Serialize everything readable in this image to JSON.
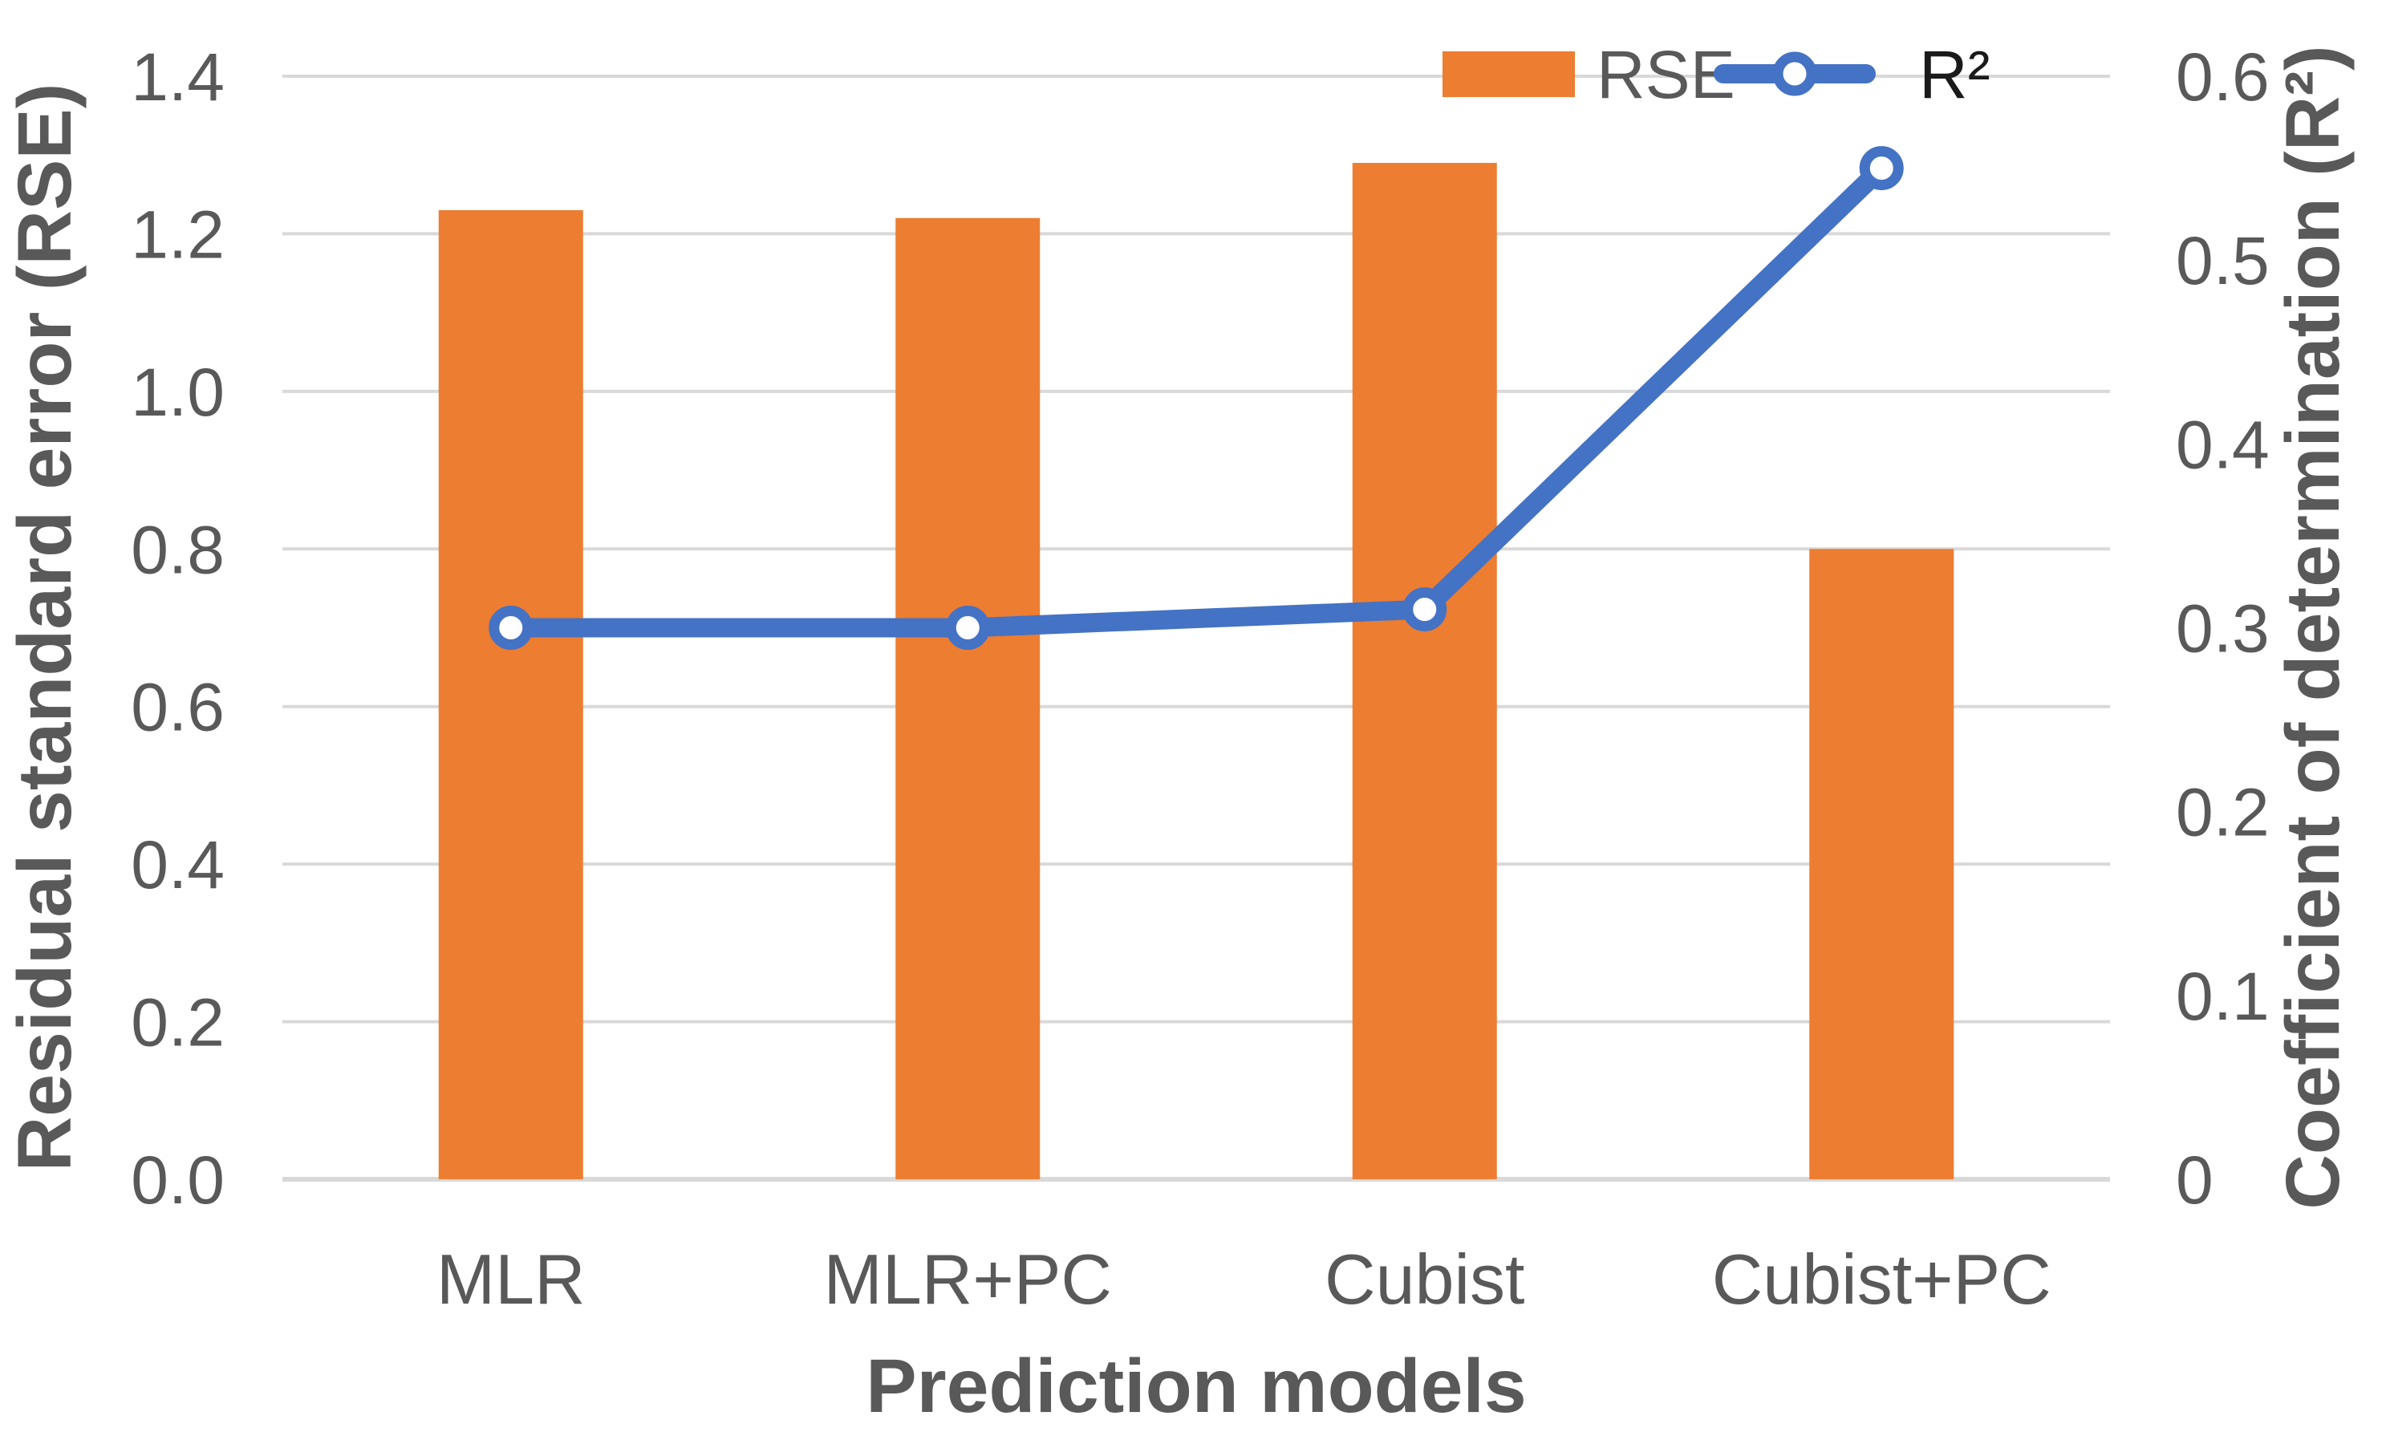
{
  "chart_data": {
    "type": "combo (bar + line, dual axis)",
    "categories": [
      "MLR",
      "MLR+PC",
      "Cubist",
      "Cubist+PC"
    ],
    "series": [
      {
        "name": "RSE",
        "type": "bar",
        "axis": "left",
        "color": "#ED7D31",
        "values": [
          1.23,
          1.22,
          1.29,
          0.8
        ]
      },
      {
        "name": "R²",
        "type": "line",
        "axis": "right",
        "color": "#4472C4",
        "marker": "open-circle",
        "values": [
          0.3,
          0.3,
          0.31,
          0.55
        ]
      }
    ],
    "x_axis": {
      "title": "Prediction models"
    },
    "left_axis": {
      "title": "Residual standard error (RSE)",
      "min": 0,
      "max": 1.4,
      "step": 0.2,
      "tick_labels": [
        "0.0",
        "0.2",
        "0.4",
        "0.6",
        "0.8",
        "1.0",
        "1.2",
        "1.4"
      ]
    },
    "right_axis": {
      "title": "Coefficient of determination (R²)",
      "min": 0,
      "max": 0.6,
      "step": 0.1,
      "tick_labels": [
        "0",
        "0.1",
        "0.2",
        "0.3",
        "0.4",
        "0.5",
        "0.6"
      ]
    },
    "grid": {
      "visible": true,
      "color": "#D9D9D9",
      "axis_line_color": "#D9D9D9"
    },
    "legend": {
      "position": "top-right",
      "rse_label_color": "#595959",
      "r2_label_color": "#1a1a1a"
    },
    "text_color": "#595959",
    "background": "#FFFFFF"
  }
}
